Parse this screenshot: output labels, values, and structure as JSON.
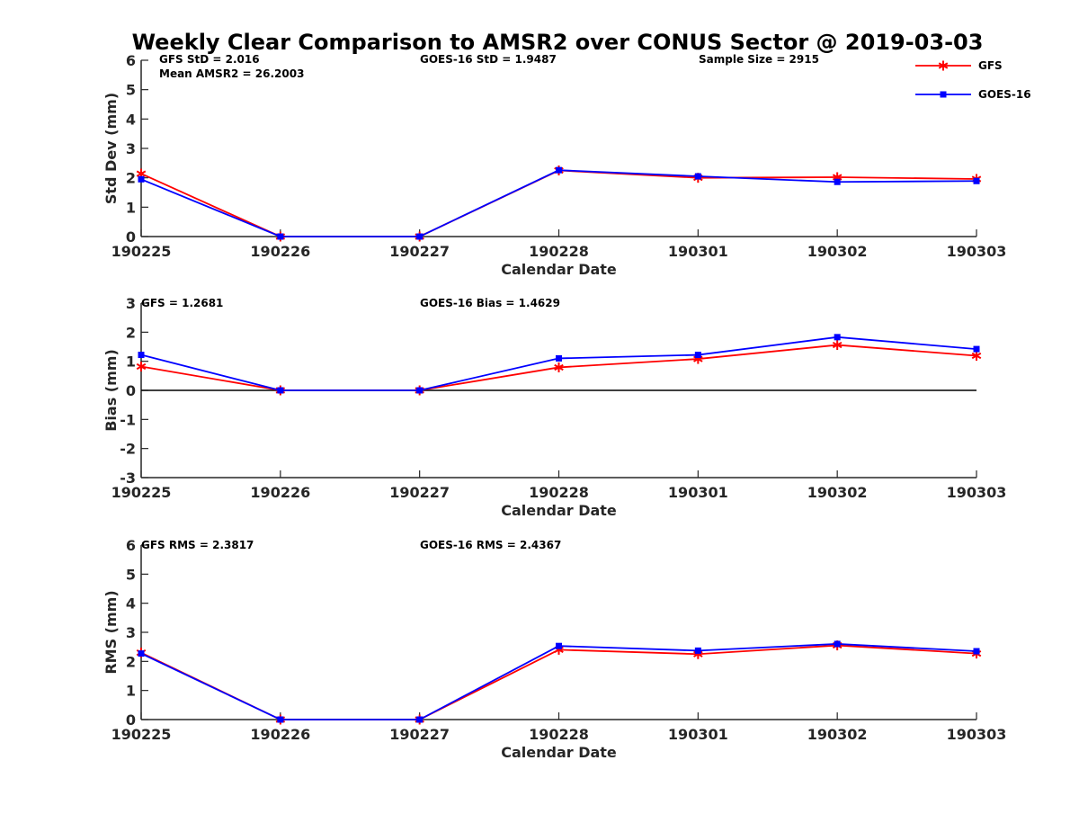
{
  "title": "Weekly Clear Comparison to AMSR2 over CONUS Sector @ 2019-03-03",
  "legend": [
    {
      "name": "GFS",
      "color": "#ff0000",
      "marker": "asterisk"
    },
    {
      "name": "GOES-16",
      "color": "#0000ff",
      "marker": "square"
    }
  ],
  "chart_data": [
    {
      "type": "line",
      "categories": [
        "190225",
        "190226",
        "190227",
        "190228",
        "190301",
        "190302",
        "190303"
      ],
      "xlabel": "Calendar Date",
      "ylabel": "Std Dev (mm)",
      "ylim": [
        0,
        6
      ],
      "yticks": [
        "0",
        "1",
        "2",
        "3",
        "4",
        "5",
        "6"
      ],
      "zero_line": false,
      "annotations": [
        "GFS StD = 2.016",
        "Mean AMSR2 = 26.2003",
        "GOES-16 StD = 1.9487",
        "Sample Size = 2915"
      ],
      "series": [
        {
          "name": "GFS",
          "color": "#ff0000",
          "values": [
            2.14,
            0.0,
            0.0,
            2.25,
            2.0,
            2.02,
            1.96
          ]
        },
        {
          "name": "GOES-16",
          "color": "#0000ff",
          "values": [
            1.95,
            0.0,
            0.0,
            2.26,
            2.05,
            1.86,
            1.89
          ]
        }
      ]
    },
    {
      "type": "line",
      "categories": [
        "190225",
        "190226",
        "190227",
        "190228",
        "190301",
        "190302",
        "190303"
      ],
      "xlabel": "Calendar Date",
      "ylabel": "Bias (mm)",
      "ylim": [
        -3,
        3
      ],
      "yticks": [
        "-3",
        "-2",
        "-1",
        "0",
        "1",
        "2",
        "3"
      ],
      "zero_line": true,
      "annotations": [
        "GFS = 1.2681",
        "GOES-16 Bias  = 1.4629"
      ],
      "series": [
        {
          "name": "GFS",
          "color": "#ff0000",
          "values": [
            0.82,
            0.0,
            0.0,
            0.79,
            1.08,
            1.56,
            1.19
          ]
        },
        {
          "name": "GOES-16",
          "color": "#0000ff",
          "values": [
            1.22,
            0.0,
            0.0,
            1.1,
            1.22,
            1.83,
            1.42
          ]
        }
      ]
    },
    {
      "type": "line",
      "categories": [
        "190225",
        "190226",
        "190227",
        "190228",
        "190301",
        "190302",
        "190303"
      ],
      "xlabel": "Calendar Date",
      "ylabel": "RMS (mm)",
      "ylim": [
        0,
        6
      ],
      "yticks": [
        "0",
        "1",
        "2",
        "3",
        "4",
        "5",
        "6"
      ],
      "zero_line": false,
      "annotations": [
        "GFS RMS = 2.3817",
        "GOES-16 RMS = 2.4367"
      ],
      "series": [
        {
          "name": "GFS",
          "color": "#ff0000",
          "values": [
            2.3,
            0.0,
            0.0,
            2.4,
            2.25,
            2.55,
            2.27
          ]
        },
        {
          "name": "GOES-16",
          "color": "#0000ff",
          "values": [
            2.27,
            0.0,
            0.0,
            2.53,
            2.37,
            2.6,
            2.35
          ]
        }
      ]
    }
  ]
}
